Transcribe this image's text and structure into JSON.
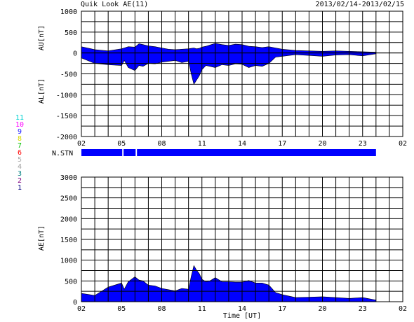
{
  "header": {
    "title": "Quik Look AE(11)",
    "date_range": "2013/02/14-2013/02/15"
  },
  "legend": {
    "entries": [
      {
        "label": "11",
        "color": "#00d0d0"
      },
      {
        "label": "10",
        "color": "#ff00ff"
      },
      {
        "label": "9",
        "color": "#2020ff"
      },
      {
        "label": "8",
        "color": "#d8d800"
      },
      {
        "label": "7",
        "color": "#00c000"
      },
      {
        "label": "6",
        "color": "#ff0000"
      },
      {
        "label": "5",
        "color": "#b0b0b0"
      },
      {
        "label": "4",
        "color": "#a0a0a0"
      },
      {
        "label": "3",
        "color": "#008080"
      },
      {
        "label": "2",
        "color": "#800080"
      },
      {
        "label": "1",
        "color": "#000080"
      }
    ]
  },
  "colors": {
    "fill": "#0000ff",
    "grid": "#000000"
  },
  "chart_data": [
    {
      "type": "area",
      "ylabel_upper": "AU[nT]",
      "ylabel_lower": "AL[nT]",
      "ylim": [
        -2000,
        1000
      ],
      "yticks": [
        "1000",
        "500",
        "0",
        "-500",
        "-1000",
        "-1500",
        "-2000"
      ],
      "xticks": [
        "02",
        "05",
        "08",
        "11",
        "14",
        "17",
        "20",
        "23",
        "02"
      ],
      "grid": true,
      "x_hours": [
        2.0,
        3.0,
        4.0,
        5.0,
        5.2,
        5.5,
        6.0,
        6.3,
        6.6,
        7.0,
        7.5,
        8.0,
        8.5,
        9.0,
        9.5,
        10.0,
        10.2,
        10.4,
        10.6,
        10.8,
        11.0,
        11.3,
        11.6,
        12.0,
        12.5,
        13.0,
        13.5,
        14.0,
        14.5,
        15.0,
        15.5,
        16.0,
        16.5,
        17.0,
        18.0,
        19.0,
        20.0,
        21.0,
        22.0,
        23.0,
        24.0
      ],
      "series": [
        {
          "name": "AU",
          "values": [
            150,
            80,
            50,
            100,
            120,
            150,
            140,
            220,
            200,
            170,
            150,
            120,
            90,
            80,
            90,
            100,
            110,
            120,
            100,
            110,
            140,
            160,
            190,
            230,
            200,
            180,
            210,
            200,
            160,
            150,
            130,
            150,
            120,
            90,
            60,
            50,
            40,
            50,
            40,
            30,
            20
          ]
        },
        {
          "name": "AL",
          "values": [
            -120,
            -250,
            -280,
            -300,
            -180,
            -350,
            -420,
            -300,
            -320,
            -250,
            -260,
            -220,
            -200,
            -180,
            -230,
            -200,
            -500,
            -750,
            -650,
            -550,
            -400,
            -300,
            -320,
            -350,
            -280,
            -300,
            -260,
            -270,
            -350,
            -300,
            -320,
            -250,
            -100,
            -80,
            -40,
            -60,
            -80,
            -50,
            -40,
            -70,
            -20
          ]
        }
      ]
    },
    {
      "type": "bar",
      "ylabel": "N.STN",
      "x_segments": [
        [
          2.0,
          5.05
        ],
        [
          5.15,
          6.05
        ],
        [
          6.15,
          24.0
        ]
      ],
      "value": 11
    },
    {
      "type": "area",
      "ylabel": "AE[nT]",
      "xlabel": "Time [UT]",
      "ylim": [
        0,
        3000
      ],
      "yticks": [
        "3000",
        "2500",
        "2000",
        "1500",
        "1000",
        "500",
        "0"
      ],
      "xticks": [
        "02",
        "05",
        "08",
        "11",
        "14",
        "17",
        "20",
        "23",
        "02"
      ],
      "grid": true,
      "x_hours": [
        2.0,
        3.0,
        4.0,
        5.0,
        5.2,
        5.5,
        6.0,
        6.3,
        6.6,
        7.0,
        7.5,
        8.0,
        8.5,
        9.0,
        9.5,
        10.0,
        10.2,
        10.4,
        10.6,
        10.8,
        11.0,
        11.3,
        11.6,
        12.0,
        12.5,
        13.0,
        13.5,
        14.0,
        14.5,
        15.0,
        15.5,
        16.0,
        16.5,
        17.0,
        18.0,
        19.0,
        20.0,
        21.0,
        22.0,
        23.0,
        24.0
      ],
      "series": [
        {
          "name": "AE",
          "values": [
            200,
            150,
            350,
            450,
            300,
            480,
            600,
            520,
            500,
            400,
            380,
            320,
            290,
            260,
            320,
            300,
            610,
            870,
            760,
            680,
            540,
            480,
            500,
            580,
            480,
            480,
            470,
            470,
            510,
            450,
            450,
            400,
            220,
            170,
            100,
            110,
            120,
            100,
            80,
            100,
            40
          ]
        }
      ]
    }
  ]
}
